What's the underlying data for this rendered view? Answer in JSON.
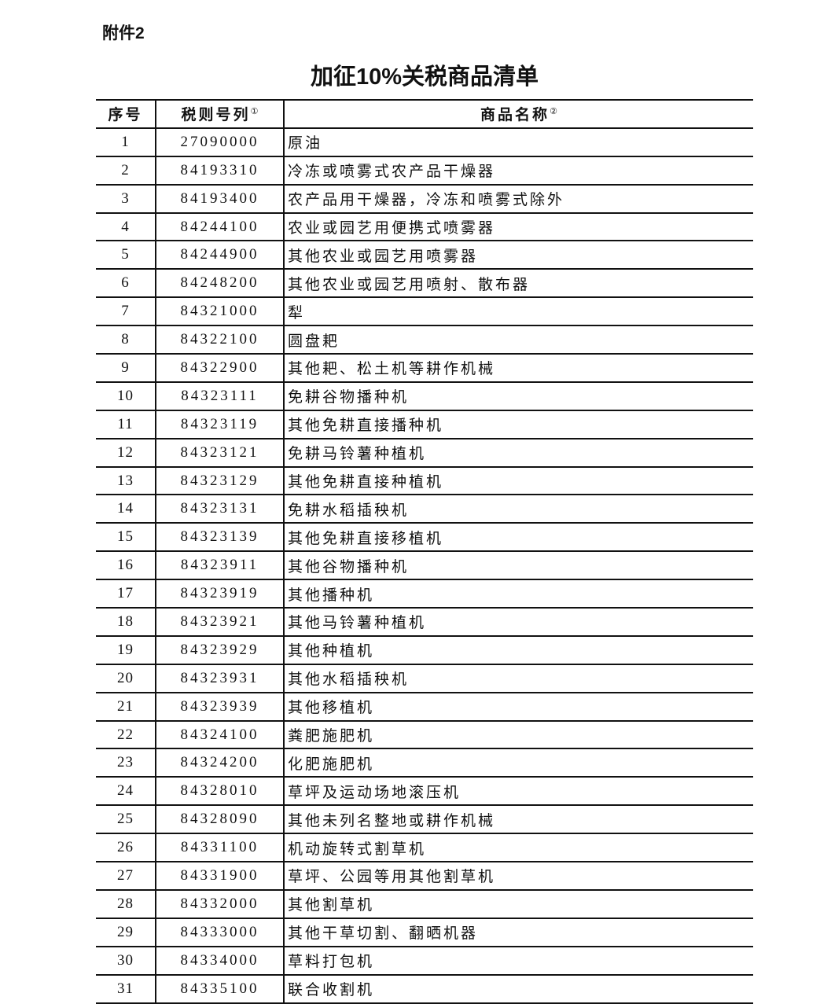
{
  "attachment_label": "附件2",
  "title": "加征10%关税商品清单",
  "table": {
    "headers": {
      "index": "序号",
      "code": "税则号列",
      "code_note": "①",
      "name": "商品名称",
      "name_note": "②"
    },
    "rows": [
      {
        "index": "1",
        "code": "27090000",
        "name": "原油"
      },
      {
        "index": "2",
        "code": "84193310",
        "name": "冷冻或喷雾式农产品干燥器"
      },
      {
        "index": "3",
        "code": "84193400",
        "name": "农产品用干燥器，冷冻和喷雾式除外"
      },
      {
        "index": "4",
        "code": "84244100",
        "name": "农业或园艺用便携式喷雾器"
      },
      {
        "index": "5",
        "code": "84244900",
        "name": "其他农业或园艺用喷雾器"
      },
      {
        "index": "6",
        "code": "84248200",
        "name": "其他农业或园艺用喷射、散布器"
      },
      {
        "index": "7",
        "code": "84321000",
        "name": "犁"
      },
      {
        "index": "8",
        "code": "84322100",
        "name": "圆盘耙"
      },
      {
        "index": "9",
        "code": "84322900",
        "name": "其他耙、松土机等耕作机械"
      },
      {
        "index": "10",
        "code": "84323111",
        "name": "免耕谷物播种机"
      },
      {
        "index": "11",
        "code": "84323119",
        "name": "其他免耕直接播种机"
      },
      {
        "index": "12",
        "code": "84323121",
        "name": "免耕马铃薯种植机"
      },
      {
        "index": "13",
        "code": "84323129",
        "name": "其他免耕直接种植机"
      },
      {
        "index": "14",
        "code": "84323131",
        "name": "免耕水稻插秧机"
      },
      {
        "index": "15",
        "code": "84323139",
        "name": "其他免耕直接移植机"
      },
      {
        "index": "16",
        "code": "84323911",
        "name": "其他谷物播种机"
      },
      {
        "index": "17",
        "code": "84323919",
        "name": "其他播种机"
      },
      {
        "index": "18",
        "code": "84323921",
        "name": "其他马铃薯种植机"
      },
      {
        "index": "19",
        "code": "84323929",
        "name": "其他种植机"
      },
      {
        "index": "20",
        "code": "84323931",
        "name": "其他水稻插秧机"
      },
      {
        "index": "21",
        "code": "84323939",
        "name": "其他移植机"
      },
      {
        "index": "22",
        "code": "84324100",
        "name": "粪肥施肥机"
      },
      {
        "index": "23",
        "code": "84324200",
        "name": "化肥施肥机"
      },
      {
        "index": "24",
        "code": "84328010",
        "name": "草坪及运动场地滚压机"
      },
      {
        "index": "25",
        "code": "84328090",
        "name": "其他未列名整地或耕作机械"
      },
      {
        "index": "26",
        "code": "84331100",
        "name": "机动旋转式割草机"
      },
      {
        "index": "27",
        "code": "84331900",
        "name": "草坪、公园等用其他割草机"
      },
      {
        "index": "28",
        "code": "84332000",
        "name": "其他割草机"
      },
      {
        "index": "29",
        "code": "84333000",
        "name": "其他干草切割、翻晒机器"
      },
      {
        "index": "30",
        "code": "84334000",
        "name": "草料打包机"
      },
      {
        "index": "31",
        "code": "84335100",
        "name": "联合收割机"
      }
    ]
  }
}
